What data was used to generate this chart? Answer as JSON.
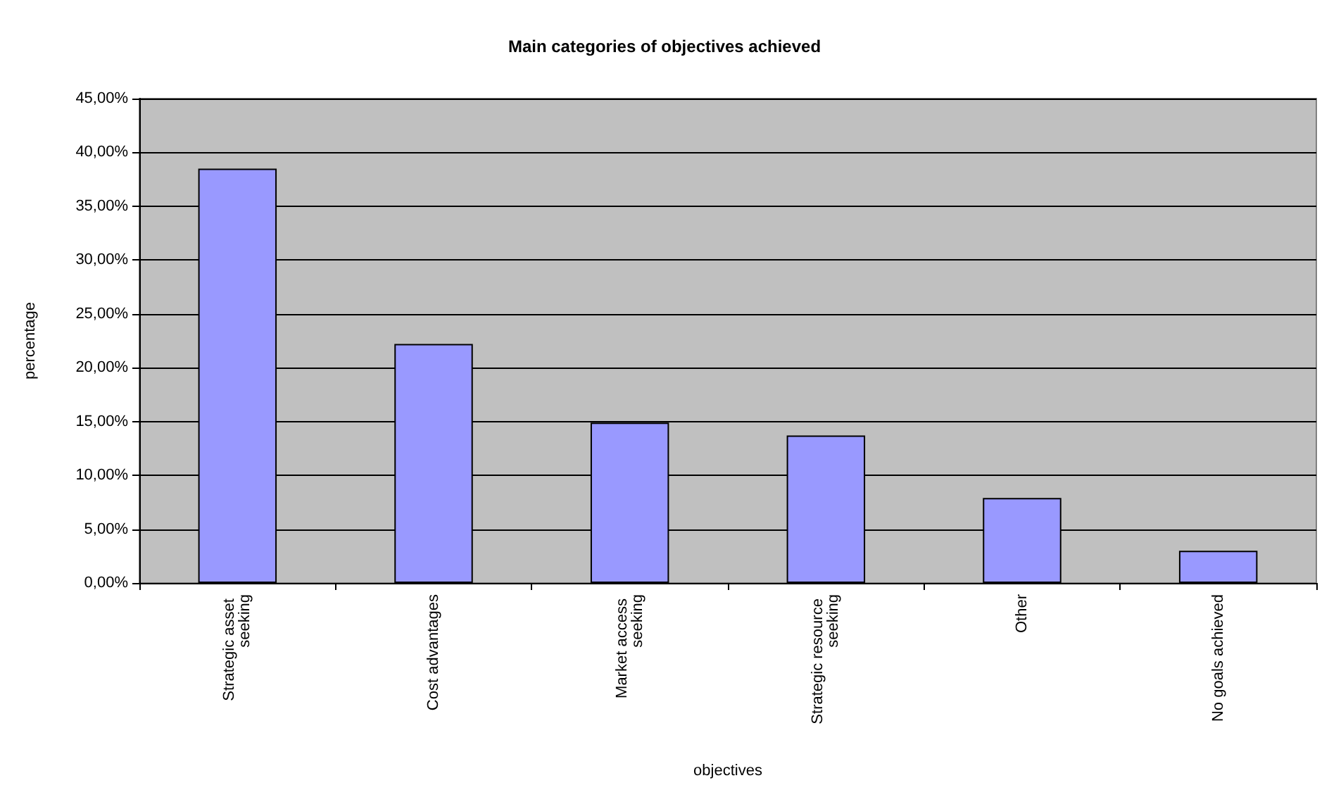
{
  "chart_data": {
    "type": "bar",
    "title": "Main categories of objectives achieved",
    "xlabel": "objectives",
    "ylabel": "percentage",
    "categories": [
      "Strategic asset seeking",
      "Cost advantages",
      "Market access seeking",
      "Strategic resource seeking",
      "Other",
      "No goals achieved"
    ],
    "values": [
      38.5,
      22.2,
      14.9,
      13.7,
      7.9,
      3.0
    ],
    "color": "#9999ff",
    "ylim": [
      0,
      45
    ],
    "yticks": [
      {
        "value": 0,
        "label": "0,00%"
      },
      {
        "value": 5,
        "label": "5,00%"
      },
      {
        "value": 10,
        "label": "10,00%"
      },
      {
        "value": 15,
        "label": "15,00%"
      },
      {
        "value": 20,
        "label": "20,00%"
      },
      {
        "value": 25,
        "label": "25,00%"
      },
      {
        "value": 30,
        "label": "30,00%"
      },
      {
        "value": 35,
        "label": "35,00%"
      },
      {
        "value": 40,
        "label": "40,00%"
      },
      {
        "value": 45,
        "label": "45,00%"
      }
    ],
    "grid": "y"
  }
}
